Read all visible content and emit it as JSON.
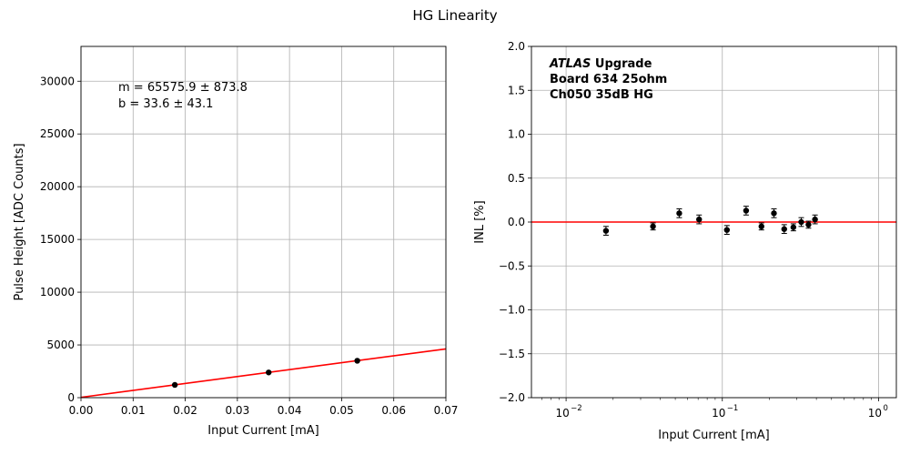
{
  "figure": {
    "title": "HG Linearity"
  },
  "chart_data": [
    {
      "type": "scatter",
      "xlabel": "Input Current [mA]",
      "ylabel": "Pulse Height [ADC Counts]",
      "xlim": [
        0,
        0.07
      ],
      "ylim": [
        0,
        33300
      ],
      "xticks": [
        0,
        0.01,
        0.02,
        0.03,
        0.04,
        0.05,
        0.06,
        0.07
      ],
      "xtick_labels": [
        "0.00",
        "0.01",
        "0.02",
        "0.03",
        "0.04",
        "0.05",
        "0.06",
        "0.07"
      ],
      "yticks": [
        0,
        5000,
        10000,
        15000,
        20000,
        25000,
        30000
      ],
      "ytick_labels": [
        "0",
        "5000",
        "10000",
        "15000",
        "20000",
        "25000",
        "30000"
      ],
      "grid": true,
      "series": [
        {
          "x": [
            0.018,
            0.036,
            0.053
          ],
          "y": [
            1210,
            2390,
            3500
          ],
          "color": "#000000",
          "marker": "circle"
        }
      ],
      "fit_line": {
        "slope": 65575.9,
        "intercept": 33.6,
        "color": "#ff0000"
      },
      "annotations": [
        "m = 65575.9 ± 873.8",
        " b = 33.6 ± 43.1"
      ]
    },
    {
      "type": "scatter",
      "xlabel": "Input Current [mA]",
      "ylabel": "INL [%]",
      "xscale": "log",
      "xlim": [
        0.006,
        1.3
      ],
      "ylim": [
        -2.0,
        2.0
      ],
      "xticks": [
        0.01,
        0.1,
        1
      ],
      "xtick_labels": [
        [
          "10",
          "−2"
        ],
        [
          "10",
          "−1"
        ],
        [
          "10",
          "0"
        ]
      ],
      "yticks": [
        -2.0,
        -1.5,
        -1.0,
        -0.5,
        0.0,
        0.5,
        1.0,
        1.5,
        2.0
      ],
      "ytick_labels": [
        "−2.0",
        "−1.5",
        "−1.0",
        "−0.5",
        "0.0",
        "0.5",
        "1.0",
        "1.5",
        "2.0"
      ],
      "grid": true,
      "series": [
        {
          "x": [
            0.018,
            0.036,
            0.053,
            0.071,
            0.107,
            0.142,
            0.178,
            0.214,
            0.249,
            0.285,
            0.32,
            0.356,
            0.392
          ],
          "y": [
            -0.1,
            -0.05,
            0.1,
            0.03,
            -0.09,
            0.13,
            -0.05,
            0.1,
            -0.08,
            -0.06,
            0.0,
            -0.03,
            0.03
          ],
          "yerr": [
            0.05,
            0.04,
            0.05,
            0.05,
            0.05,
            0.05,
            0.04,
            0.05,
            0.05,
            0.04,
            0.05,
            0.04,
            0.05
          ],
          "color": "#000000",
          "marker": "circle"
        }
      ],
      "hline": {
        "y": 0.0,
        "color": "#ff0000"
      },
      "annotation": {
        "experiment": "ATLAS",
        "label": " Upgrade",
        "lines": [
          " Board 634 25ohm",
          " Ch050 35dB HG"
        ]
      }
    }
  ]
}
